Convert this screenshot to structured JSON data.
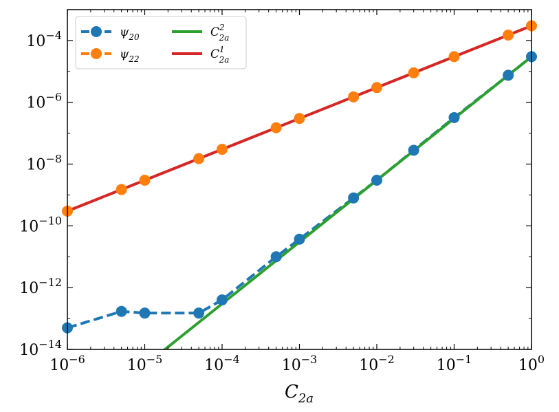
{
  "chart_data": {
    "type": "line",
    "title": "",
    "xlabel": "C_{2a}",
    "ylabel": "",
    "xscale": "log",
    "yscale": "log",
    "xlim": [
      1e-06,
      1
    ],
    "ylim": [
      1e-14,
      0.001
    ],
    "grid": false,
    "legend_position": "top-left",
    "xticks": [
      {
        "value": 1e-06,
        "base": "10",
        "exp": "−6"
      },
      {
        "value": 1e-05,
        "base": "10",
        "exp": "−5"
      },
      {
        "value": 0.0001,
        "base": "10",
        "exp": "−4"
      },
      {
        "value": 0.001,
        "base": "10",
        "exp": "−3"
      },
      {
        "value": 0.01,
        "base": "10",
        "exp": "−2"
      },
      {
        "value": 0.1,
        "base": "10",
        "exp": "−1"
      },
      {
        "value": 1,
        "base": "10",
        "exp": "0"
      }
    ],
    "yticks": [
      {
        "value": 1e-14,
        "base": "10",
        "exp": "−14"
      },
      {
        "value": 1e-12,
        "base": "10",
        "exp": "−12"
      },
      {
        "value": 1e-10,
        "base": "10",
        "exp": "−10"
      },
      {
        "value": 1e-08,
        "base": "10",
        "exp": "−8"
      },
      {
        "value": 1e-06,
        "base": "10",
        "exp": "−6"
      },
      {
        "value": 0.0001,
        "base": "10",
        "exp": "−4"
      }
    ],
    "series": [
      {
        "name": "ψ_{20}",
        "label_main": "ψ",
        "label_sub": "20",
        "label_sup": "",
        "color": "#1f77b4",
        "style": "dashed",
        "marker": "circle",
        "x": [
          1e-06,
          5e-06,
          1e-05,
          5e-05,
          0.0001,
          0.0005,
          0.001,
          0.005,
          0.01,
          0.03,
          0.1,
          0.5,
          1
        ],
        "y": [
          5e-14,
          1.7e-13,
          1.5e-13,
          1.5e-13,
          4e-13,
          1e-11,
          3.7e-11,
          8e-10,
          3e-09,
          2.8e-08,
          3.2e-07,
          7.5e-06,
          3e-05
        ]
      },
      {
        "name": "ψ_{22}",
        "label_main": "ψ",
        "label_sub": "22",
        "label_sup": "",
        "color": "#ff7f0e",
        "style": "dashed",
        "marker": "circle",
        "x": [
          1e-06,
          5e-06,
          1e-05,
          5e-05,
          0.0001,
          0.0005,
          0.001,
          0.005,
          0.01,
          0.03,
          0.1,
          0.5,
          1
        ],
        "y": [
          3e-10,
          1.5e-09,
          3e-09,
          1.5e-08,
          3e-08,
          1.5e-07,
          3e-07,
          1.5e-06,
          3e-06,
          9e-06,
          3e-05,
          0.00015,
          0.0003
        ]
      },
      {
        "name": "C_{2a}^2",
        "label_main": "C",
        "label_sub": "2a",
        "label_sup": "2",
        "color": "#2ca02c",
        "style": "solid",
        "marker": "none",
        "x": [
          1e-06,
          1
        ],
        "y": [
          3e-17,
          3e-05
        ]
      },
      {
        "name": "C_{2a}^1",
        "label_main": "C",
        "label_sub": "2a",
        "label_sup": "1",
        "color": "#d62728",
        "style": "solid",
        "marker": "none",
        "x": [
          1e-06,
          1
        ],
        "y": [
          3e-10,
          0.0003
        ]
      }
    ]
  }
}
